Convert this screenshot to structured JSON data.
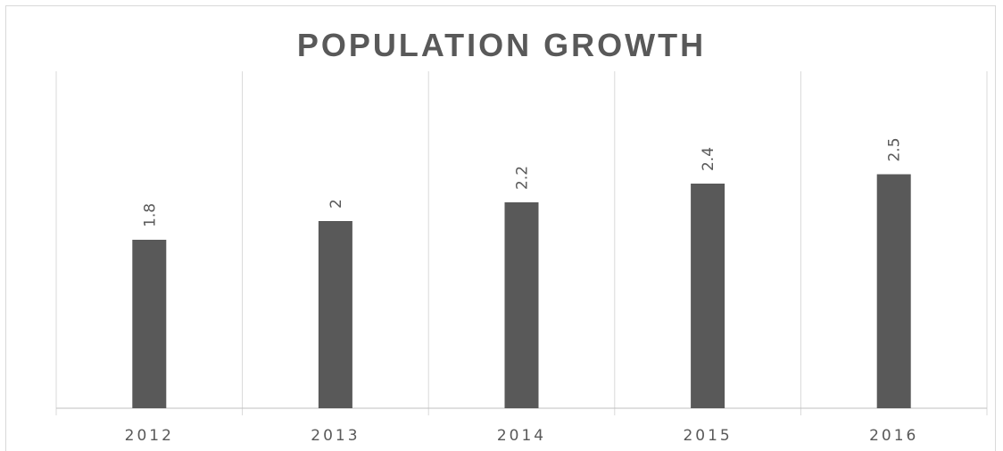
{
  "chart_data": {
    "type": "bar",
    "title": "POPULATION GROWTH",
    "categories": [
      "2012",
      "2013",
      "2014",
      "2015",
      "2016"
    ],
    "values": [
      1.8,
      2,
      2.2,
      2.4,
      2.5
    ],
    "data_labels": [
      "1.8",
      "2",
      "2.2",
      "2.4",
      "2.5"
    ],
    "ylim": [
      0,
      3.6
    ],
    "grid": "vertical category dividers",
    "legend": "none",
    "bar_color": "#595959",
    "grid_color": "#d9d9d9",
    "axis_color": "#bfbfbf",
    "text_color": "#595959"
  }
}
